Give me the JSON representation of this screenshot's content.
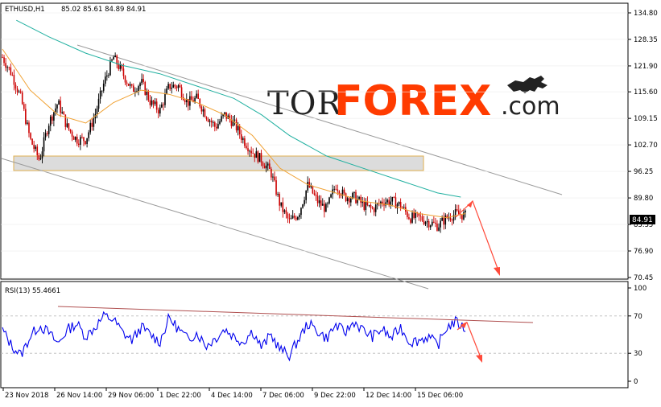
{
  "header": {
    "symbol": "ETHUSD,H1",
    "ohlc": "85.02 85.61 84.89 84.91",
    "rsi_label": "RSI(13) 55.4661"
  },
  "watermark": {
    "tor": "TOR",
    "forex": "FOREX",
    "com": ".com"
  },
  "colors": {
    "candle_up": "#000000",
    "candle_down": "#cc0000",
    "ma_fast": "#f0a030",
    "ma_slow": "#20b0a0",
    "rsi_line": "#0000ee",
    "forecast_arrow": "#ff4a3a",
    "channel": "#9a9a9a",
    "resistance_trend": "#b05050",
    "support_zone": "#dcdcdc",
    "price_tag_bg": "#000000"
  },
  "chart_data": [
    {
      "type": "candlestick",
      "symbol": "ETHUSD",
      "timeframe": "H1",
      "y_ticks": [
        134.8,
        128.35,
        121.9,
        115.6,
        109.15,
        102.7,
        96.25,
        89.8,
        83.35,
        76.9,
        70.45
      ],
      "ylim": [
        70.45,
        134.8
      ],
      "x_ticks": [
        "23 Nov 2018",
        "26 Nov 14:00",
        "29 Nov 06:00",
        "1 Dec 22:00",
        "4 Dec 14:00",
        "7 Dec 06:00",
        "9 Dec 22:00",
        "12 Dec 14:00",
        "15 Dec 06:00"
      ],
      "current_price": "84.91",
      "price_path": [
        [
          0,
          124
        ],
        [
          2,
          120
        ],
        [
          4,
          114
        ],
        [
          6,
          104
        ],
        [
          8,
          99
        ],
        [
          10,
          108
        ],
        [
          12,
          113
        ],
        [
          14,
          107
        ],
        [
          16,
          104
        ],
        [
          18,
          104
        ],
        [
          20,
          110
        ],
        [
          22,
          118
        ],
        [
          24,
          124
        ],
        [
          26,
          120
        ],
        [
          28,
          116
        ],
        [
          30,
          118
        ],
        [
          32,
          113
        ],
        [
          34,
          111
        ],
        [
          36,
          117
        ],
        [
          38,
          117
        ],
        [
          40,
          113
        ],
        [
          42,
          114
        ],
        [
          44,
          110
        ],
        [
          46,
          107
        ],
        [
          48,
          110
        ],
        [
          50,
          108
        ],
        [
          52,
          104
        ],
        [
          54,
          101
        ],
        [
          56,
          99
        ],
        [
          58,
          96
        ],
        [
          60,
          88
        ],
        [
          62,
          84
        ],
        [
          64,
          86
        ],
        [
          66,
          93
        ],
        [
          68,
          89
        ],
        [
          70,
          87
        ],
        [
          72,
          93
        ],
        [
          74,
          90
        ],
        [
          76,
          90
        ],
        [
          78,
          88
        ],
        [
          80,
          87
        ],
        [
          82,
          89
        ],
        [
          84,
          89
        ],
        [
          86,
          88
        ],
        [
          88,
          85
        ],
        [
          90,
          85
        ],
        [
          92,
          84
        ],
        [
          94,
          83
        ],
        [
          96,
          85
        ],
        [
          98,
          86
        ],
        [
          100,
          85.5
        ]
      ],
      "ma_fast_path": [
        [
          0,
          126
        ],
        [
          6,
          116
        ],
        [
          12,
          110
        ],
        [
          18,
          108
        ],
        [
          24,
          113
        ],
        [
          30,
          116
        ],
        [
          36,
          115
        ],
        [
          42,
          113
        ],
        [
          48,
          110
        ],
        [
          54,
          105
        ],
        [
          60,
          97
        ],
        [
          66,
          93
        ],
        [
          72,
          91
        ],
        [
          78,
          89
        ],
        [
          84,
          88
        ],
        [
          90,
          86
        ],
        [
          96,
          85
        ],
        [
          100,
          86
        ]
      ],
      "ma_slow_path": [
        [
          3,
          133
        ],
        [
          10,
          129
        ],
        [
          18,
          125
        ],
        [
          26,
          122
        ],
        [
          34,
          120
        ],
        [
          42,
          117
        ],
        [
          50,
          114
        ],
        [
          56,
          110
        ],
        [
          62,
          105
        ],
        [
          70,
          100
        ],
        [
          78,
          97
        ],
        [
          86,
          94
        ],
        [
          94,
          91
        ],
        [
          99,
          90
        ]
      ]
    },
    {
      "type": "line",
      "indicator": "RSI",
      "period": 13,
      "last_value": 55.4661,
      "y_ticks": [
        100,
        70,
        30,
        0
      ],
      "ylim": [
        0,
        100
      ],
      "rsi_path": [
        [
          0,
          55
        ],
        [
          2,
          38
        ],
        [
          4,
          28
        ],
        [
          6,
          48
        ],
        [
          8,
          60
        ],
        [
          10,
          52
        ],
        [
          12,
          40
        ],
        [
          14,
          55
        ],
        [
          16,
          62
        ],
        [
          18,
          48
        ],
        [
          20,
          58
        ],
        [
          22,
          70
        ],
        [
          24,
          66
        ],
        [
          26,
          52
        ],
        [
          28,
          44
        ],
        [
          30,
          58
        ],
        [
          32,
          50
        ],
        [
          34,
          42
        ],
        [
          36,
          68
        ],
        [
          38,
          56
        ],
        [
          40,
          45
        ],
        [
          42,
          52
        ],
        [
          44,
          38
        ],
        [
          46,
          46
        ],
        [
          48,
          56
        ],
        [
          50,
          48
        ],
        [
          52,
          42
        ],
        [
          54,
          54
        ],
        [
          56,
          36
        ],
        [
          58,
          50
        ],
        [
          60,
          34
        ],
        [
          62,
          28
        ],
        [
          64,
          45
        ],
        [
          66,
          62
        ],
        [
          68,
          54
        ],
        [
          70,
          46
        ],
        [
          72,
          60
        ],
        [
          74,
          52
        ],
        [
          76,
          64
        ],
        [
          78,
          54
        ],
        [
          80,
          48
        ],
        [
          82,
          56
        ],
        [
          84,
          46
        ],
        [
          86,
          58
        ],
        [
          88,
          42
        ],
        [
          90,
          44
        ],
        [
          92,
          48
        ],
        [
          94,
          38
        ],
        [
          96,
          58
        ],
        [
          98,
          64
        ],
        [
          100,
          55.5
        ]
      ]
    }
  ]
}
